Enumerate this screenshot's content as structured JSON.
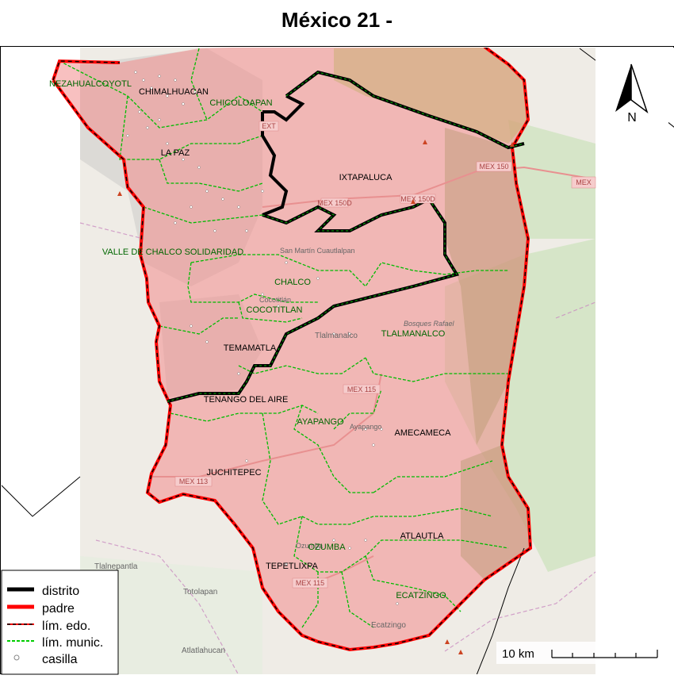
{
  "title": "México 21 -",
  "compass_label": "N",
  "scale_label": "10 km",
  "legend": [
    {
      "key": "distrito",
      "label": "distrito",
      "color": "#000000"
    },
    {
      "key": "padre",
      "label": "padre",
      "color": "#ff0000"
    },
    {
      "key": "lim_edo",
      "label": "lím. edo.",
      "color": "#ff0000"
    },
    {
      "key": "lim_munic",
      "label": "lím. munic.",
      "color": "#00cc00"
    },
    {
      "key": "casilla",
      "label": "casilla",
      "color": "#999999"
    }
  ],
  "municipalities": [
    {
      "name": "NEZAHUALCOYOTL"
    },
    {
      "name": "CHIMALHUACAN"
    },
    {
      "name": "CHICOLOAPAN"
    },
    {
      "name": "LA PAZ"
    },
    {
      "name": "IXTAPALUCA"
    },
    {
      "name": "VALLE DE CHALCO SOLIDARIDAD"
    },
    {
      "name": "CHALCO"
    },
    {
      "name": "COCOTITLAN"
    },
    {
      "name": "TLALMANALCO"
    },
    {
      "name": "TEMAMATLA"
    },
    {
      "name": "TENANGO DEL AIRE"
    },
    {
      "name": "AYAPANGO"
    },
    {
      "name": "AMECAMECA"
    },
    {
      "name": "JUCHITEPEC"
    },
    {
      "name": "ATLAUTLA"
    },
    {
      "name": "OZUMBA"
    },
    {
      "name": "TEPETLIXPA"
    },
    {
      "name": "ECATZINGO"
    }
  ],
  "basemap_labels": [
    {
      "text": "Tlalnepantla"
    },
    {
      "text": "Totolapan"
    },
    {
      "text": "Atlatlahucan"
    },
    {
      "text": "Ecatzingo"
    },
    {
      "text": "Tlalmanalco"
    },
    {
      "text": "San Martín Cuautlalpan"
    },
    {
      "text": "Bosques Rafael"
    },
    {
      "text": "Cocotitlán"
    },
    {
      "text": "Ozumba"
    },
    {
      "text": "Ayapango"
    }
  ],
  "road_shields": [
    {
      "text": "MEX 150D"
    },
    {
      "text": "MEX 150D"
    },
    {
      "text": "MEX 150"
    },
    {
      "text": "MEX"
    },
    {
      "text": "MEX 113"
    },
    {
      "text": "MEX 115"
    },
    {
      "text": "MEX 115"
    },
    {
      "text": "EXT"
    }
  ]
}
